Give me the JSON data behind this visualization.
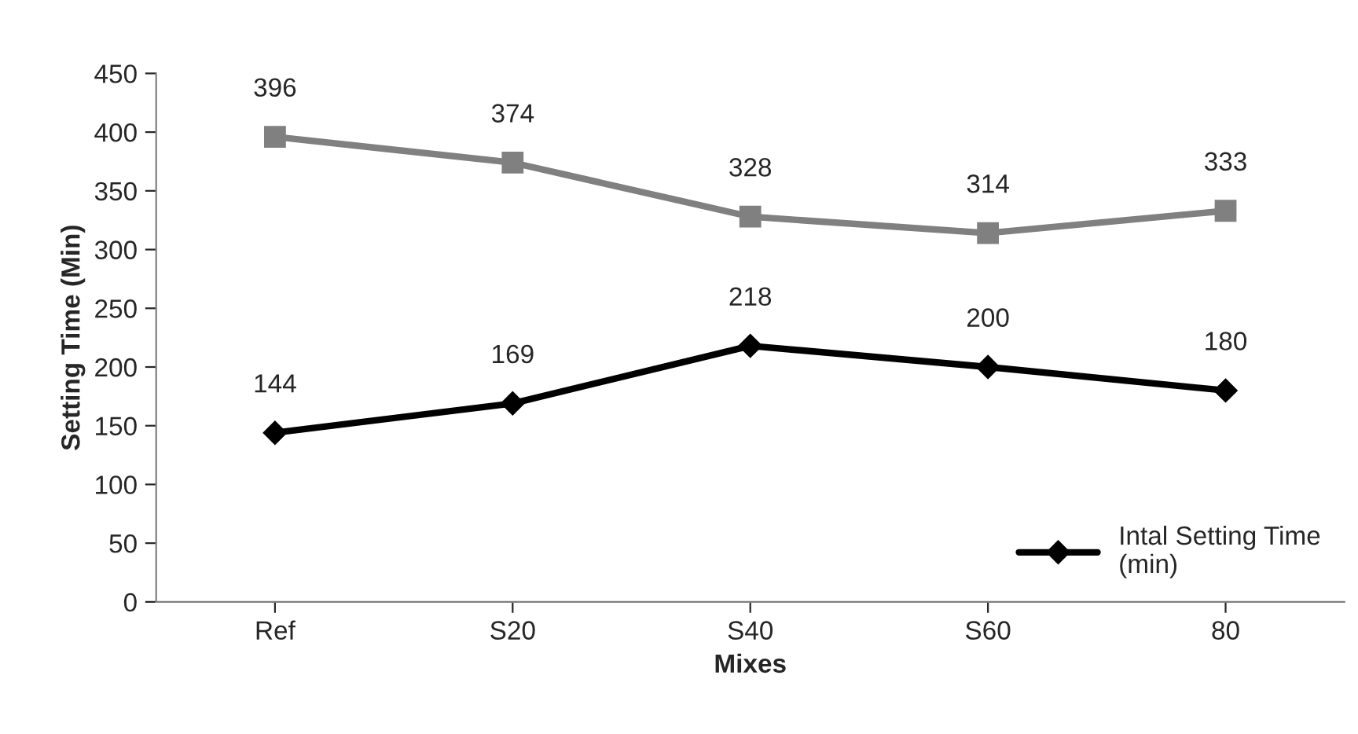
{
  "chart_data": {
    "type": "line",
    "xlabel": "Mixes",
    "ylabel": "Setting Time (Min)",
    "categories": [
      "Ref",
      "S20",
      "S40",
      "S60",
      "80"
    ],
    "series": [
      {
        "color": "#808080",
        "marker": "square",
        "values": [
          396,
          374,
          328,
          314,
          333
        ]
      },
      {
        "name": "Intal Setting Time\n(min)",
        "color": "#000000",
        "marker": "diamond",
        "values": [
          144,
          169,
          218,
          200,
          180
        ]
      }
    ],
    "ylim": [
      0,
      450
    ],
    "yticks": [
      0,
      50,
      100,
      150,
      200,
      250,
      300,
      350,
      400,
      450
    ],
    "data_labels": true,
    "grid": false,
    "legend": "bottom right",
    "line_style": "solid"
  }
}
